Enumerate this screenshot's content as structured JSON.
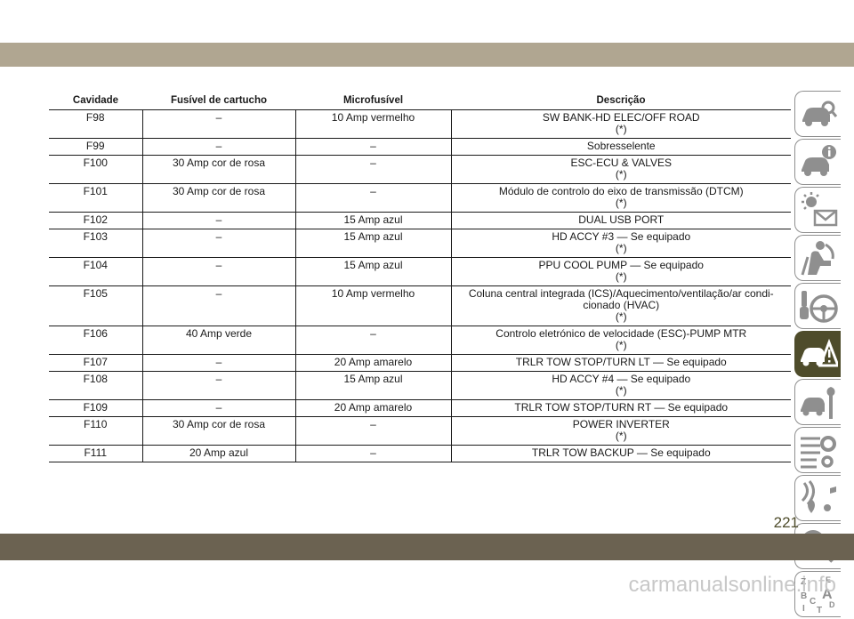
{
  "table": {
    "headers": [
      "Cavidade",
      "Fusível de cartucho",
      "Microfusível",
      "Descrição"
    ],
    "rows": [
      {
        "cavity": "F98",
        "cartridge": "–",
        "micro": "10 Amp vermelho",
        "desc": "SW BANK-HD ELEC/OFF ROAD",
        "note": "(*)"
      },
      {
        "cavity": "F99",
        "cartridge": "–",
        "micro": "–",
        "desc": "Sobresselente",
        "note": ""
      },
      {
        "cavity": "F100",
        "cartridge": "30 Amp cor de rosa",
        "micro": "–",
        "desc": "ESC-ECU & VALVES",
        "note": "(*)"
      },
      {
        "cavity": "F101",
        "cartridge": "30 Amp cor de rosa",
        "micro": "–",
        "desc": "Módulo de controlo do eixo de transmissão (DTCM)",
        "note": "(*)"
      },
      {
        "cavity": "F102",
        "cartridge": "–",
        "micro": "15 Amp azul",
        "desc": "DUAL USB PORT",
        "note": ""
      },
      {
        "cavity": "F103",
        "cartridge": "–",
        "micro": "15 Amp azul",
        "desc": "HD ACCY #3 — Se equipado",
        "note": "(*)"
      },
      {
        "cavity": "F104",
        "cartridge": "–",
        "micro": "15 Amp azul",
        "desc": "PPU COOL PUMP — Se equipado",
        "note": "(*)"
      },
      {
        "cavity": "F105",
        "cartridge": "–",
        "micro": "10 Amp vermelho",
        "desc": "Coluna central integrada (ICS)/Aquecimento/ventilação/ar condi-cionado (HVAC)",
        "note": "(*)"
      },
      {
        "cavity": "F106",
        "cartridge": "40 Amp verde",
        "micro": "–",
        "desc": "Controlo eletrónico de velocidade (ESC)-PUMP MTR",
        "note": "(*)"
      },
      {
        "cavity": "F107",
        "cartridge": "–",
        "micro": "20 Amp amarelo",
        "desc": "TRLR TOW STOP/TURN LT — Se equipado",
        "note": ""
      },
      {
        "cavity": "F108",
        "cartridge": "–",
        "micro": "15 Amp azul",
        "desc": "HD ACCY #4 — Se equipado",
        "note": "(*)"
      },
      {
        "cavity": "F109",
        "cartridge": "–",
        "micro": "20 Amp amarelo",
        "desc": "TRLR TOW STOP/TURN RT — Se equipado",
        "note": ""
      },
      {
        "cavity": "F110",
        "cartridge": "30 Amp cor de rosa",
        "micro": "–",
        "desc": "POWER INVERTER",
        "note": "(*)"
      },
      {
        "cavity": "F111",
        "cartridge": "20 Amp azul",
        "micro": "–",
        "desc": "TRLR TOW BACKUP — Se equipado",
        "note": ""
      }
    ]
  },
  "tabs": [
    {
      "icon": "car-magnifier-icon"
    },
    {
      "icon": "car-info-icon"
    },
    {
      "icon": "warning-light-message-icon"
    },
    {
      "icon": "seat-airbag-icon"
    },
    {
      "icon": "steering-key-icon"
    },
    {
      "icon": "car-hazard-icon",
      "active": true
    },
    {
      "icon": "car-wrench-icon"
    },
    {
      "icon": "checklist-gear-icon"
    },
    {
      "icon": "navigation-music-icon"
    },
    {
      "icon": "search-icon"
    },
    {
      "icon": "alphabet-index-icon",
      "letters": [
        "Z",
        "E",
        "B",
        "A",
        "C",
        "D",
        "I",
        "T"
      ]
    }
  ],
  "page_number": "221",
  "watermark": "carmanualsonline.info",
  "colors": {
    "top_band": "#b0a691",
    "bottom_band": "#6b6251",
    "accent": "#4e4c2b"
  }
}
